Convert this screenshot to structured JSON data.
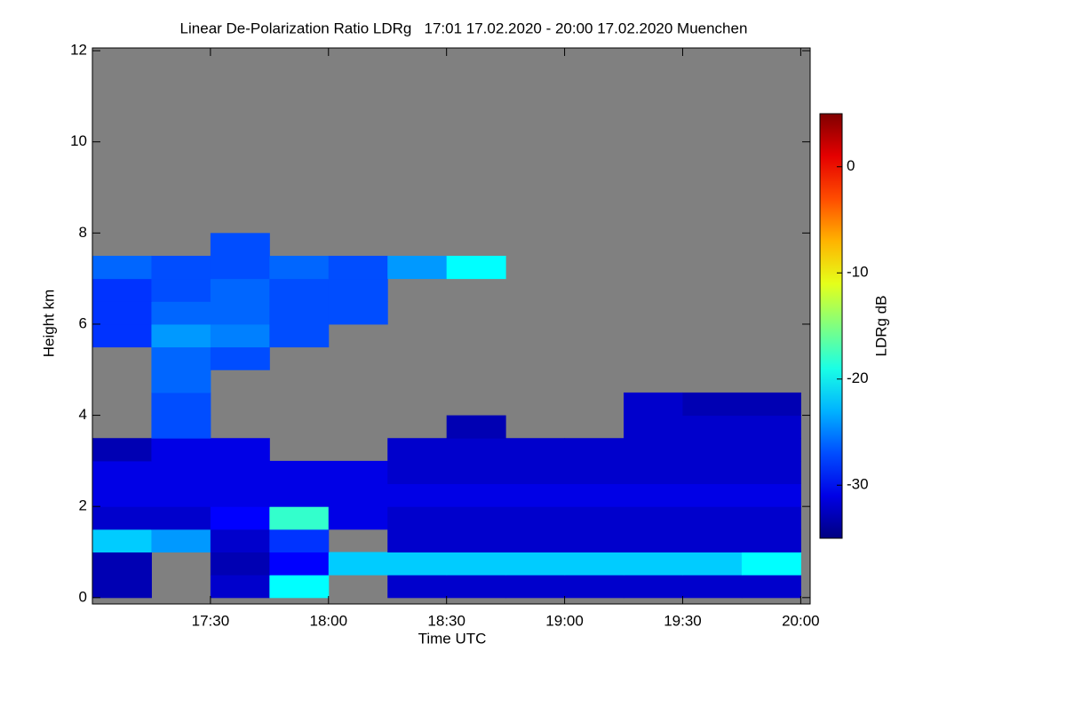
{
  "chart_data": {
    "type": "heatmap",
    "title": "Linear De-Polarization Ratio LDRg   17:01 17.02.2020 - 20:00 17.02.2020 Muenchen",
    "x_label": "Time UTC",
    "y_label": "Height km",
    "colorbar_label": "LDRg dB",
    "xlim": [
      17.0,
      20.04
    ],
    "xticks": [
      {
        "value": 17.5,
        "label": "17:30"
      },
      {
        "value": 18.0,
        "label": "18:00"
      },
      {
        "value": 18.5,
        "label": "18:30"
      },
      {
        "value": 19.0,
        "label": "19:00"
      },
      {
        "value": 19.5,
        "label": "19:30"
      },
      {
        "value": 20.0,
        "label": "20:00"
      }
    ],
    "ylim": [
      -0.14,
      12.06
    ],
    "yticks": [
      0,
      2,
      4,
      6,
      8,
      10,
      12
    ],
    "clim": [
      -35,
      5
    ],
    "cticks": [
      0,
      -10,
      -20,
      -30
    ],
    "colormap": "jet",
    "background": "#808080",
    "x": [
      17.125,
      17.375,
      17.625,
      17.875,
      18.125,
      18.375,
      18.625,
      18.875,
      19.125,
      19.375,
      19.625,
      19.875
    ],
    "y": [
      0.25,
      0.75,
      1.25,
      1.75,
      2.25,
      2.75,
      3.25,
      3.75,
      4.25,
      4.75,
      5.25,
      5.75,
      6.25,
      6.75,
      7.25,
      7.75
    ],
    "z": [
      [
        -33,
        null,
        -32,
        -20,
        null,
        -32,
        -32,
        -32,
        -32,
        -32,
        -32,
        -32
      ],
      [
        -33,
        null,
        -33,
        -30,
        -22,
        -22,
        -22,
        -22,
        -22,
        -22,
        -22,
        -20
      ],
      [
        -22,
        -24,
        -32,
        -28,
        null,
        -32,
        -32,
        -32,
        -32,
        -32,
        -32,
        -32
      ],
      [
        -32,
        -32,
        -30,
        -18,
        -31,
        -32,
        -32,
        -32,
        -32,
        -32,
        -32,
        -32
      ],
      [
        -31,
        -31,
        -31,
        -31,
        -31,
        -31,
        -31,
        -31,
        -31,
        -31,
        -31,
        -31
      ],
      [
        -31,
        -31,
        -31,
        -31,
        -31,
        -32,
        -32,
        -32,
        -32,
        -32,
        -32,
        -32
      ],
      [
        -33,
        -31,
        -31,
        null,
        null,
        -32,
        -32,
        -32,
        -32,
        -32,
        -32,
        -32
      ],
      [
        null,
        -27,
        null,
        null,
        null,
        null,
        -33,
        null,
        null,
        -32,
        -32,
        -32
      ],
      [
        null,
        -27,
        null,
        null,
        null,
        null,
        null,
        null,
        null,
        -32,
        -33,
        -33
      ],
      [
        null,
        -26,
        null,
        null,
        null,
        null,
        null,
        null,
        null,
        null,
        null,
        null
      ],
      [
        null,
        -26,
        -27,
        null,
        null,
        null,
        null,
        null,
        null,
        null,
        null,
        null
      ],
      [
        -28,
        -24,
        -25,
        -27,
        null,
        null,
        null,
        null,
        null,
        null,
        null,
        null
      ],
      [
        -28,
        -26,
        -26,
        -27,
        -27,
        null,
        null,
        null,
        null,
        null,
        null,
        null
      ],
      [
        -28,
        -27,
        -26,
        -27,
        -27,
        null,
        null,
        null,
        null,
        null,
        null,
        null
      ],
      [
        -26,
        -27,
        -27,
        -26,
        -27,
        -24,
        -20,
        null,
        null,
        null,
        null,
        null
      ],
      [
        null,
        null,
        -27,
        null,
        null,
        null,
        null,
        null,
        null,
        null,
        null,
        null
      ]
    ]
  }
}
